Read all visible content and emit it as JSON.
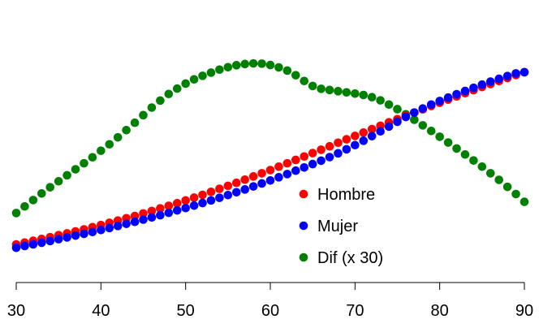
{
  "chart_data": {
    "type": "scatter",
    "title": "",
    "xlabel": "",
    "ylabel": "",
    "xlim": [
      30,
      90
    ],
    "ylim": [
      0,
      1
    ],
    "xticks": [
      30,
      40,
      50,
      60,
      70,
      80,
      90
    ],
    "grid": false,
    "legend_position": "bottom-right",
    "x": [
      30,
      31,
      32,
      33,
      34,
      35,
      36,
      37,
      38,
      39,
      40,
      41,
      42,
      43,
      44,
      45,
      46,
      47,
      48,
      49,
      50,
      51,
      52,
      53,
      54,
      55,
      56,
      57,
      58,
      59,
      60,
      61,
      62,
      63,
      64,
      65,
      66,
      67,
      68,
      69,
      70,
      71,
      72,
      73,
      74,
      75,
      76,
      77,
      78,
      79,
      80,
      81,
      82,
      83,
      84,
      85,
      86,
      87,
      88,
      89,
      90
    ],
    "series": [
      {
        "name": "Hombre",
        "color": "#ff0000",
        "values": [
          0.0,
          0.009,
          0.018,
          0.027,
          0.036,
          0.046,
          0.055,
          0.065,
          0.075,
          0.086,
          0.097,
          0.108,
          0.119,
          0.131,
          0.142,
          0.155,
          0.167,
          0.18,
          0.193,
          0.206,
          0.22,
          0.234,
          0.248,
          0.263,
          0.278,
          0.293,
          0.308,
          0.324,
          0.34,
          0.356,
          0.372,
          0.389,
          0.406,
          0.423,
          0.44,
          0.457,
          0.474,
          0.491,
          0.509,
          0.526,
          0.543,
          0.56,
          0.577,
          0.594,
          0.611,
          0.627,
          0.644,
          0.66,
          0.676,
          0.693,
          0.709,
          0.725,
          0.741,
          0.757,
          0.772,
          0.788,
          0.803,
          0.818,
          0.833,
          0.848,
          0.862
        ]
      },
      {
        "name": "Mujer",
        "color": "#0000ff",
        "values": [
          -0.017,
          -0.008,
          0.0,
          0.008,
          0.017,
          0.026,
          0.035,
          0.044,
          0.053,
          0.062,
          0.072,
          0.082,
          0.092,
          0.103,
          0.113,
          0.124,
          0.135,
          0.146,
          0.158,
          0.17,
          0.182,
          0.194,
          0.207,
          0.22,
          0.233,
          0.247,
          0.261,
          0.275,
          0.29,
          0.305,
          0.32,
          0.336,
          0.352,
          0.369,
          0.385,
          0.402,
          0.419,
          0.437,
          0.456,
          0.476,
          0.497,
          0.519,
          0.542,
          0.566,
          0.59,
          0.614,
          0.638,
          0.66,
          0.68,
          0.7,
          0.718,
          0.735,
          0.752,
          0.768,
          0.784,
          0.8,
          0.815,
          0.829,
          0.843,
          0.856,
          0.862
        ]
      },
      {
        "name": "Dif (x 30)",
        "color": "#008000",
        "values": [
          0.157,
          0.19,
          0.222,
          0.255,
          0.286,
          0.316,
          0.346,
          0.376,
          0.406,
          0.436,
          0.469,
          0.501,
          0.536,
          0.572,
          0.609,
          0.647,
          0.685,
          0.72,
          0.753,
          0.78,
          0.805,
          0.826,
          0.844,
          0.86,
          0.875,
          0.887,
          0.897,
          0.903,
          0.906,
          0.905,
          0.898,
          0.886,
          0.87,
          0.847,
          0.818,
          0.793,
          0.779,
          0.773,
          0.767,
          0.761,
          0.755,
          0.748,
          0.737,
          0.721,
          0.7,
          0.677,
          0.651,
          0.624,
          0.596,
          0.568,
          0.539,
          0.51,
          0.48,
          0.45,
          0.42,
          0.389,
          0.356,
          0.323,
          0.288,
          0.252,
          0.213
        ]
      }
    ]
  }
}
